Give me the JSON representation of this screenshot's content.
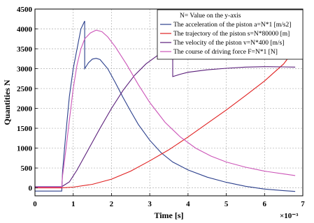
{
  "chart_data": {
    "type": "line",
    "xlabel": "Time [s]",
    "ylabel": "Quantities N",
    "x_exponent": "×10⁻³",
    "xlim": [
      0,
      7
    ],
    "ylim": [
      -200,
      4500
    ],
    "x_ticks": [
      0,
      1,
      2,
      3,
      4,
      5,
      6,
      7
    ],
    "y_ticks": [
      0,
      500,
      1000,
      1500,
      2000,
      2500,
      3000,
      3500,
      4000,
      4500
    ],
    "grid": true,
    "legend_position": "top-right",
    "legend_header": "N= Value on the y-axis",
    "series": [
      {
        "name": "The acceleration of the piston a=N*1 [m/s2]",
        "color": "#2b3f8c",
        "points": [
          [
            0.0,
            -80
          ],
          [
            0.7,
            -80
          ],
          [
            0.72,
            400
          ],
          [
            0.8,
            1300
          ],
          [
            0.9,
            2300
          ],
          [
            1.0,
            3000
          ],
          [
            1.1,
            3500
          ],
          [
            1.2,
            4000
          ],
          [
            1.3,
            4200
          ],
          [
            1.3,
            3000
          ],
          [
            1.4,
            3150
          ],
          [
            1.5,
            3240
          ],
          [
            1.6,
            3260
          ],
          [
            1.7,
            3230
          ],
          [
            1.9,
            3000
          ],
          [
            2.1,
            2650
          ],
          [
            2.3,
            2280
          ],
          [
            2.5,
            1930
          ],
          [
            2.7,
            1600
          ],
          [
            3.0,
            1200
          ],
          [
            3.3,
            880
          ],
          [
            3.6,
            650
          ],
          [
            4.0,
            450
          ],
          [
            4.5,
            270
          ],
          [
            5.0,
            140
          ],
          [
            5.5,
            40
          ],
          [
            6.0,
            -30
          ],
          [
            6.5,
            -70
          ],
          [
            6.8,
            -90
          ]
        ]
      },
      {
        "name": "The trajectory of the piston s=N*80000 [m]",
        "color": "#e02020",
        "points": [
          [
            0.0,
            0
          ],
          [
            0.7,
            0
          ],
          [
            1.0,
            20
          ],
          [
            1.5,
            90
          ],
          [
            2.0,
            220
          ],
          [
            2.5,
            420
          ],
          [
            3.0,
            680
          ],
          [
            3.5,
            960
          ],
          [
            4.0,
            1280
          ],
          [
            4.5,
            1620
          ],
          [
            5.0,
            1960
          ],
          [
            5.5,
            2320
          ],
          [
            6.0,
            2690
          ],
          [
            6.5,
            3120
          ],
          [
            6.8,
            3500
          ]
        ]
      },
      {
        "name": "The velocity of the piston v=N*400 [m/s]",
        "color": "#5a1e7a",
        "points": [
          [
            0.0,
            30
          ],
          [
            0.7,
            30
          ],
          [
            0.9,
            150
          ],
          [
            1.1,
            450
          ],
          [
            1.3,
            800
          ],
          [
            1.5,
            1150
          ],
          [
            1.7,
            1500
          ],
          [
            2.0,
            2000
          ],
          [
            2.3,
            2450
          ],
          [
            2.6,
            2830
          ],
          [
            2.9,
            3120
          ],
          [
            3.2,
            3330
          ],
          [
            3.5,
            3480
          ],
          [
            3.6,
            3520
          ],
          [
            3.6,
            2800
          ],
          [
            3.8,
            2860
          ],
          [
            4.0,
            2910
          ],
          [
            4.5,
            2970
          ],
          [
            5.0,
            3010
          ],
          [
            5.5,
            3040
          ],
          [
            6.0,
            3050
          ],
          [
            6.5,
            3045
          ],
          [
            6.8,
            3040
          ]
        ]
      },
      {
        "name": "The course of driving force F=N*1 [N]",
        "color": "#cc55b8",
        "points": [
          [
            0.0,
            20
          ],
          [
            0.7,
            20
          ],
          [
            0.72,
            300
          ],
          [
            0.8,
            900
          ],
          [
            0.9,
            1700
          ],
          [
            1.0,
            2500
          ],
          [
            1.1,
            3100
          ],
          [
            1.2,
            3500
          ],
          [
            1.3,
            3750
          ],
          [
            1.45,
            3900
          ],
          [
            1.6,
            3970
          ],
          [
            1.75,
            3930
          ],
          [
            1.9,
            3800
          ],
          [
            2.1,
            3550
          ],
          [
            2.4,
            3100
          ],
          [
            2.7,
            2600
          ],
          [
            3.0,
            2150
          ],
          [
            3.4,
            1650
          ],
          [
            3.8,
            1280
          ],
          [
            4.2,
            1000
          ],
          [
            4.6,
            800
          ],
          [
            5.0,
            650
          ],
          [
            5.5,
            520
          ],
          [
            6.0,
            420
          ],
          [
            6.5,
            350
          ],
          [
            6.8,
            310
          ]
        ]
      }
    ]
  }
}
